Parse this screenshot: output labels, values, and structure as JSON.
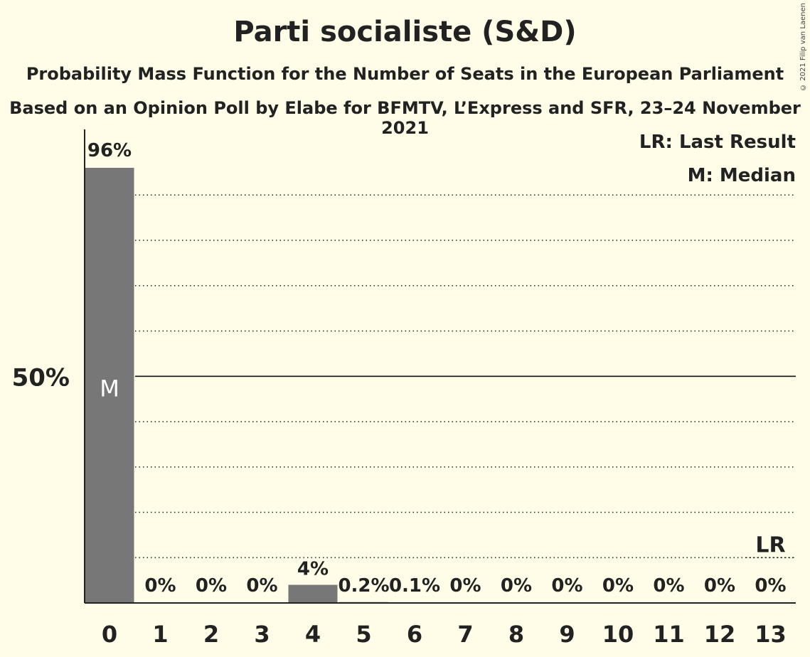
{
  "chart_data": {
    "type": "bar",
    "title": "Parti socialiste (S&D)",
    "subtitle": "Probability Mass Function for the Number of Seats in the European Parliament",
    "subtitle2": "Based on an Opinion Poll by Elabe for BFMTV, L’Express and SFR, 23–24 November 2021",
    "categories": [
      "0",
      "1",
      "2",
      "3",
      "4",
      "5",
      "6",
      "7",
      "8",
      "9",
      "10",
      "11",
      "12",
      "13"
    ],
    "values": [
      96,
      0,
      0,
      0,
      4,
      0.2,
      0.1,
      0,
      0,
      0,
      0,
      0,
      0,
      0
    ],
    "labels": [
      "96%",
      "0%",
      "0%",
      "0%",
      "4%",
      "0.2%",
      "0.1%",
      "0%",
      "0%",
      "0%",
      "0%",
      "0%",
      "0%",
      "0%"
    ],
    "ylim": [
      0,
      105
    ],
    "y_tick_label": "50%",
    "y_tick_value": 50,
    "minor_gridlines": [
      10,
      20,
      30,
      40,
      60,
      70,
      80,
      90
    ],
    "median_seat": 0,
    "median_marker": "M",
    "last_result_seat": 13,
    "last_result_marker": "LR",
    "legend": [
      "LR: Last Result",
      "M: Median"
    ],
    "bar_color": "#777777",
    "copyright": "© 2021 Filip van Laenen"
  }
}
